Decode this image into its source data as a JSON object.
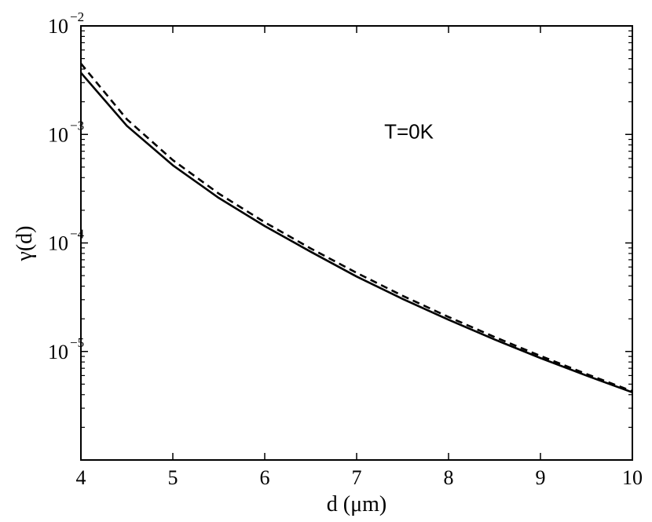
{
  "chart_data": {
    "type": "line",
    "xlabel": "d (μm)",
    "ylabel": "γ(d)",
    "xlim": [
      4,
      10
    ],
    "ylim": [
      1e-06,
      0.01
    ],
    "yscale": "log",
    "grid": false,
    "x_ticks": [
      4,
      5,
      6,
      7,
      8,
      9,
      10
    ],
    "x_tick_labels": [
      "4",
      "5",
      "6",
      "7",
      "8",
      "9",
      "10"
    ],
    "y_ticks": [
      1e-05,
      0.0001,
      0.001,
      0.01
    ],
    "y_tick_labels": [
      {
        "base": "10",
        "exp": "−5"
      },
      {
        "base": "10",
        "exp": "−4"
      },
      {
        "base": "10",
        "exp": "−3"
      },
      {
        "base": "10",
        "exp": "−2"
      }
    ],
    "annotation": {
      "text": "T=0K",
      "x": 7.3,
      "y": 0.00092
    },
    "series": [
      {
        "style": "solid",
        "color": "#000000",
        "x": [
          4,
          4.5,
          5,
          5.5,
          6,
          6.5,
          7,
          7.5,
          8,
          8.5,
          9,
          9.5,
          10
        ],
        "values": [
          0.0037,
          0.0012,
          0.00052,
          0.00026,
          0.000143,
          8.3e-05,
          4.9e-05,
          3.05e-05,
          1.96e-05,
          1.29e-05,
          8.7e-06,
          6e-06,
          4.2e-06
        ]
      },
      {
        "style": "dashed",
        "color": "#000000",
        "x": [
          4,
          4.5,
          5,
          5.5,
          6,
          6.5,
          7,
          7.5,
          8,
          8.5,
          9,
          9.5,
          10
        ],
        "values": [
          0.0045,
          0.00138,
          0.00058,
          0.000285,
          0.000155,
          8.9e-05,
          5.3e-05,
          3.26e-05,
          2.08e-05,
          1.36e-05,
          9.1e-06,
          6.2e-06,
          4.3e-06
        ]
      }
    ]
  }
}
